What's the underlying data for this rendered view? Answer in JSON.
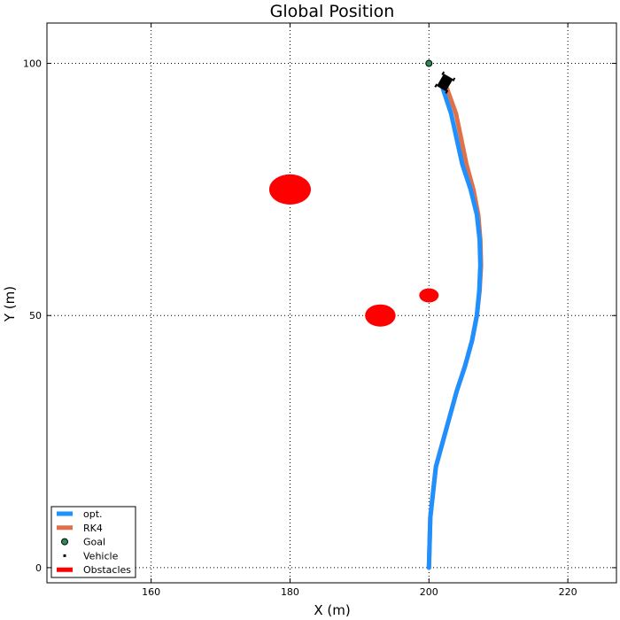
{
  "chart_data": {
    "type": "line",
    "title": "Global Position",
    "xlabel": "X (m)",
    "ylabel": "Y (m)",
    "xlim": [
      145,
      227
    ],
    "ylim": [
      -3,
      108
    ],
    "xticks": [
      160,
      180,
      200,
      220
    ],
    "yticks": [
      0,
      50,
      100
    ],
    "grid": true,
    "legend_position": "bottom-left",
    "series": [
      {
        "name": "opt.",
        "color": "#1e90ff",
        "x": [
          200,
          200.2,
          201,
          202,
          203,
          204,
          205.2,
          206.2,
          206.9,
          207.25,
          207.4,
          207.3,
          206.9,
          206,
          204.8,
          203.2,
          202
        ],
        "y": [
          0,
          10,
          20,
          25,
          30,
          35,
          40,
          45,
          50,
          55,
          60,
          65,
          70,
          75,
          80,
          90,
          95
        ]
      },
      {
        "name": "RK4",
        "color": "#e0704a",
        "x": [
          200,
          200.2,
          201,
          202,
          203,
          204,
          205.2,
          206.2,
          206.9,
          207.3,
          207.5,
          207.4,
          207.1,
          206.4,
          205.4,
          203.9,
          202.6
        ],
        "y": [
          0,
          10,
          20,
          25,
          30,
          35,
          40,
          45,
          50,
          55,
          60,
          65,
          70,
          75,
          80,
          90,
          95
        ]
      }
    ],
    "goal": {
      "name": "Goal",
      "x": 200,
      "y": 100,
      "color": "#2e8b57"
    },
    "vehicle": {
      "name": "Vehicle",
      "x": 202.3,
      "y": 96.2,
      "heading_deg": 60,
      "color": "#000000"
    },
    "obstacles": {
      "name": "Obstacles",
      "color": "#ff0000",
      "items": [
        {
          "x": 180,
          "y": 75,
          "r": 3
        },
        {
          "x": 193,
          "y": 50,
          "r": 2.2
        },
        {
          "x": 200,
          "y": 54,
          "r": 1.4
        }
      ]
    },
    "legend": [
      {
        "label": "opt.",
        "kind": "line",
        "color": "#1e90ff"
      },
      {
        "label": "RK4",
        "kind": "line",
        "color": "#e0704a"
      },
      {
        "label": "Goal",
        "kind": "marker",
        "color": "#2e8b57"
      },
      {
        "label": "Vehicle",
        "kind": "dot",
        "color": "#000000"
      },
      {
        "label": "Obstacles",
        "kind": "line",
        "color": "#ff0000"
      }
    ]
  }
}
